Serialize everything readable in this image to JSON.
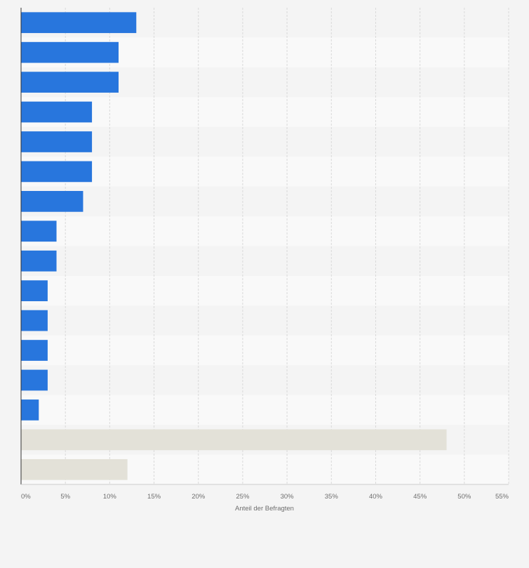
{
  "chart_data": {
    "type": "bar",
    "orientation": "horizontal",
    "categories": [
      "",
      "",
      "",
      "",
      "",
      "",
      "",
      "",
      "",
      "",
      "",
      "",
      "",
      "",
      "",
      ""
    ],
    "values": [
      13,
      11,
      11,
      8,
      8,
      8,
      7,
      4,
      4,
      3,
      3,
      3,
      3,
      2,
      48,
      12
    ],
    "bar_colors": [
      "#2876dd",
      "#2876dd",
      "#2876dd",
      "#2876dd",
      "#2876dd",
      "#2876dd",
      "#2876dd",
      "#2876dd",
      "#2876dd",
      "#2876dd",
      "#2876dd",
      "#2876dd",
      "#2876dd",
      "#2876dd",
      "#e3e1d8",
      "#e3e1d8"
    ],
    "xlim": [
      0,
      55
    ],
    "x_ticks": [
      0,
      5,
      10,
      15,
      20,
      25,
      30,
      35,
      40,
      45,
      50,
      55
    ],
    "x_tick_labels": [
      "0%",
      "5%",
      "10%",
      "15%",
      "20%",
      "25%",
      "30%",
      "35%",
      "40%",
      "45%",
      "50%",
      "55%"
    ],
    "xlabel": "Anteil der Befragten",
    "ylabel": "",
    "title": "",
    "grid": true,
    "legend": "none"
  },
  "colors": {
    "background": "#f4f4f4",
    "band_light": "#f9f9f9",
    "band_dark": "#f4f4f4",
    "gridline": "#d9d9d9",
    "axis": "#333333"
  }
}
